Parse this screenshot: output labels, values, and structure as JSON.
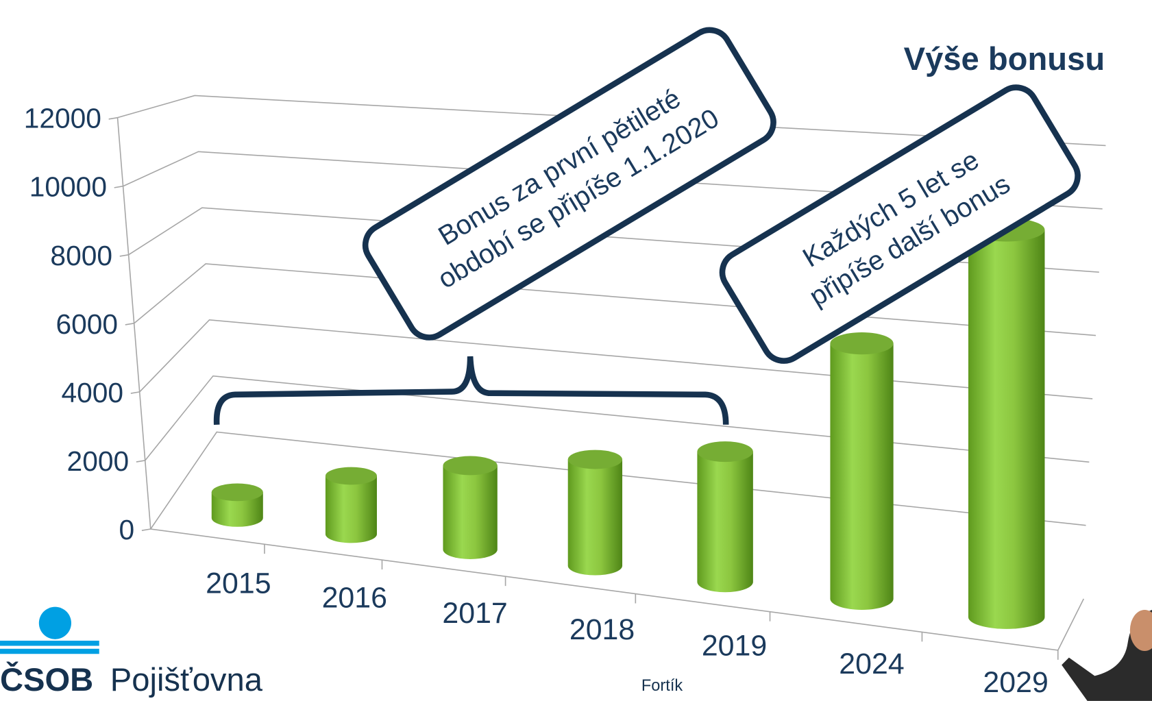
{
  "chart_data": {
    "type": "bar3d",
    "title": "Výše bonusu",
    "categories": [
      "2015",
      "2016",
      "2017",
      "2018",
      "2019",
      "2024",
      "2029"
    ],
    "values": [
      750,
      1700,
      2450,
      3100,
      3800,
      7450,
      11300
    ],
    "color": "#8cc63f",
    "ylim": [
      0,
      12000
    ],
    "yticks": [
      0,
      2000,
      4000,
      6000,
      8000,
      10000,
      12000
    ],
    "grid": true,
    "annotations": [
      [
        "Bonus za první pětileté",
        "období se připíše 1.1.2020"
      ],
      [
        "Každých 5 let se",
        "připíše další bonus"
      ]
    ]
  },
  "logo": {
    "brand": "ČSOB",
    "name": "Pojišťovna"
  },
  "footer": "Fortík"
}
